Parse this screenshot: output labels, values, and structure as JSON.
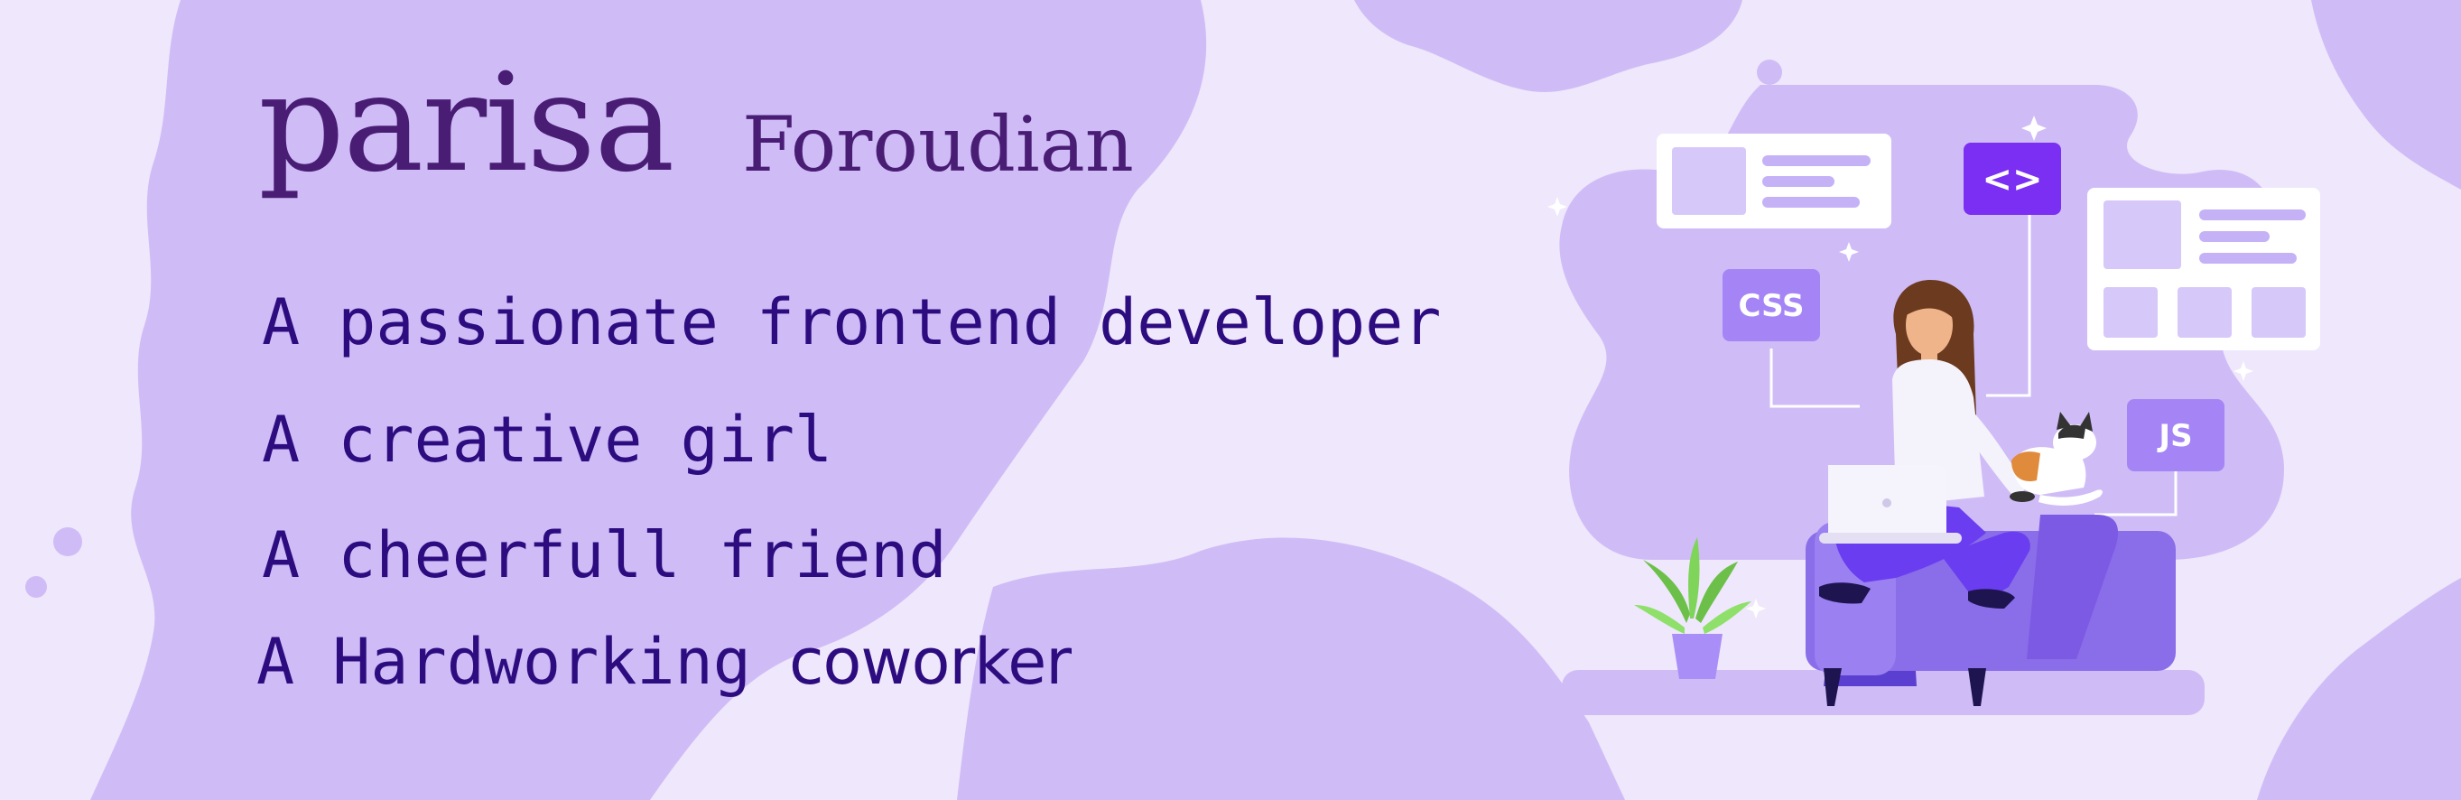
{
  "header": {
    "first_name": "parisa",
    "last_name": "Foroudian"
  },
  "taglines": [
    "A passionate frontend developer",
    "A creative girl",
    "A cheerfull friend"
  ],
  "tagline_last": {
    "prefix": "A Hardworking ",
    "accent": "coworker"
  },
  "illustration": {
    "badges": {
      "css": "CSS",
      "js": "JS",
      "code": "<>"
    }
  },
  "colors": {
    "background": "#efe7fb",
    "map": "#cfbcf7",
    "name_text": "#4a1d75",
    "tagline_text": "#2d0c80",
    "accent_purple": "#7b2ff2",
    "chair": "#8a6de9"
  }
}
